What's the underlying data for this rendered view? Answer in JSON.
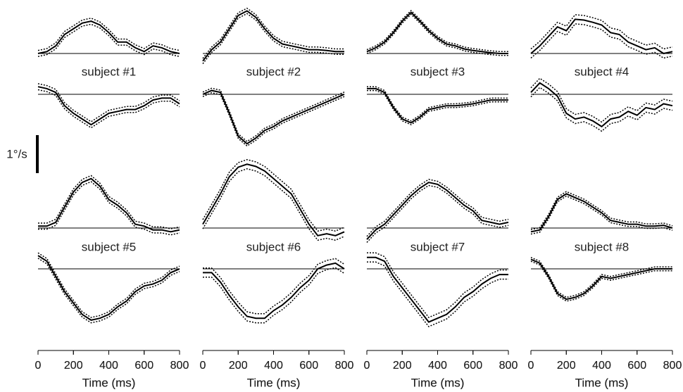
{
  "scale_bar": {
    "label": "1°/s",
    "value": 1
  },
  "chart_data": [
    {
      "type": "line",
      "title": "subject #1",
      "x": [
        0,
        50,
        100,
        150,
        200,
        250,
        300,
        350,
        400,
        450,
        500,
        550,
        600,
        650,
        700,
        750,
        800
      ],
      "xlim": [
        0,
        800
      ],
      "xticks": [
        0,
        200,
        400,
        600,
        800
      ],
      "xlabel": "Time (ms)",
      "color": "#000000",
      "series": [
        {
          "values": [
            0,
            0.05,
            0.2,
            0.5,
            0.65,
            0.8,
            0.85,
            0.75,
            0.55,
            0.3,
            0.3,
            0.15,
            0.05,
            0.2,
            0.15,
            0.05,
            0
          ],
          "ci": 0.08
        },
        {
          "values": [
            0.2,
            0.15,
            0.05,
            -0.3,
            -0.5,
            -0.65,
            -0.8,
            -0.65,
            -0.5,
            -0.45,
            -0.4,
            -0.4,
            -0.3,
            -0.15,
            -0.1,
            -0.1,
            -0.25
          ],
          "ci": 0.08
        }
      ]
    },
    {
      "type": "line",
      "title": "subject #2",
      "x": [
        0,
        50,
        100,
        150,
        200,
        250,
        300,
        350,
        400,
        450,
        500,
        550,
        600,
        650,
        700,
        750,
        800
      ],
      "xlim": [
        0,
        800
      ],
      "xticks": [
        0,
        200,
        400,
        600,
        800
      ],
      "xlabel": "Time (ms)",
      "color": "#000000",
      "series": [
        {
          "values": [
            -0.2,
            0.1,
            0.3,
            0.65,
            1.0,
            1.12,
            0.95,
            0.65,
            0.4,
            0.25,
            0.2,
            0.15,
            0.1,
            0.1,
            0.08,
            0.05,
            0.05
          ],
          "ci": 0.07
        },
        {
          "values": [
            0,
            0.1,
            0.05,
            -0.5,
            -1.1,
            -1.3,
            -1.15,
            -0.95,
            -0.85,
            -0.7,
            -0.6,
            -0.5,
            -0.4,
            -0.3,
            -0.2,
            -0.1,
            0
          ],
          "ci": 0.06
        }
      ]
    },
    {
      "type": "line",
      "title": "subject #3",
      "x": [
        0,
        50,
        100,
        150,
        200,
        250,
        300,
        350,
        400,
        450,
        500,
        550,
        600,
        650,
        700,
        750,
        800
      ],
      "xlim": [
        0,
        800
      ],
      "xticks": [
        0,
        200,
        400,
        600,
        800
      ],
      "xlabel": "Time (ms)",
      "color": "#000000",
      "series": [
        {
          "values": [
            0.05,
            0.15,
            0.3,
            0.55,
            0.85,
            1.08,
            0.85,
            0.6,
            0.4,
            0.25,
            0.2,
            0.12,
            0.08,
            0.05,
            0.02,
            0,
            0
          ],
          "ci": 0.05
        },
        {
          "values": [
            0.15,
            0.15,
            0.05,
            -0.35,
            -0.65,
            -0.75,
            -0.6,
            -0.4,
            -0.35,
            -0.3,
            -0.3,
            -0.28,
            -0.25,
            -0.2,
            -0.15,
            -0.15,
            -0.15
          ],
          "ci": 0.05
        }
      ]
    },
    {
      "type": "line",
      "title": "subject #4",
      "x": [
        0,
        50,
        100,
        150,
        200,
        250,
        300,
        350,
        400,
        450,
        500,
        550,
        600,
        650,
        700,
        750,
        800
      ],
      "xlim": [
        0,
        800
      ],
      "xticks": [
        0,
        200,
        400,
        600,
        800
      ],
      "xlabel": "Time (ms)",
      "color": "#000000",
      "series": [
        {
          "values": [
            0,
            0.2,
            0.45,
            0.7,
            0.6,
            0.9,
            0.88,
            0.82,
            0.75,
            0.55,
            0.5,
            0.3,
            0.2,
            0.1,
            0.15,
            0,
            0.05
          ],
          "ci": 0.12
        },
        {
          "values": [
            0.05,
            0.3,
            0.15,
            -0.05,
            -0.5,
            -0.65,
            -0.6,
            -0.7,
            -0.85,
            -0.65,
            -0.6,
            -0.45,
            -0.55,
            -0.35,
            -0.4,
            -0.25,
            -0.3
          ],
          "ci": 0.12
        }
      ]
    },
    {
      "type": "line",
      "title": "subject #5",
      "x": [
        0,
        50,
        100,
        150,
        200,
        250,
        300,
        350,
        400,
        450,
        500,
        550,
        600,
        650,
        700,
        750,
        800
      ],
      "xlim": [
        0,
        800
      ],
      "xticks": [
        0,
        200,
        400,
        600,
        800
      ],
      "xlabel": "Time (ms)",
      "color": "#000000",
      "series": [
        {
          "values": [
            0.05,
            0.05,
            0.15,
            0.55,
            0.95,
            1.2,
            1.3,
            1.1,
            0.75,
            0.6,
            0.4,
            0.1,
            0.05,
            -0.05,
            -0.05,
            -0.1,
            -0.05
          ],
          "ci": 0.08
        },
        {
          "values": [
            0.35,
            0.2,
            -0.2,
            -0.6,
            -0.9,
            -1.2,
            -1.35,
            -1.3,
            -1.2,
            -1.0,
            -0.85,
            -0.6,
            -0.45,
            -0.4,
            -0.3,
            -0.1,
            0
          ],
          "ci": 0.07
        }
      ]
    },
    {
      "type": "line",
      "title": "subject #6",
      "x": [
        0,
        50,
        100,
        150,
        200,
        250,
        300,
        350,
        400,
        450,
        500,
        550,
        600,
        650,
        700,
        750,
        800
      ],
      "xlim": [
        0,
        800
      ],
      "xticks": [
        0,
        200,
        400,
        600,
        800
      ],
      "xlabel": "Time (ms)",
      "color": "#000000",
      "series": [
        {
          "values": [
            0.1,
            0.5,
            0.9,
            1.35,
            1.6,
            1.68,
            1.62,
            1.5,
            1.3,
            1.1,
            0.9,
            0.5,
            0.1,
            -0.2,
            -0.15,
            -0.2,
            -0.1
          ],
          "ci": 0.12
        },
        {
          "values": [
            -0.1,
            -0.1,
            -0.35,
            -0.7,
            -1.0,
            -1.25,
            -1.3,
            -1.3,
            -1.1,
            -0.95,
            -0.75,
            -0.5,
            -0.3,
            0,
            0.1,
            0.15,
            0
          ],
          "ci": 0.12
        }
      ]
    },
    {
      "type": "line",
      "title": "subject #7",
      "x": [
        0,
        50,
        100,
        150,
        200,
        250,
        300,
        350,
        400,
        450,
        500,
        550,
        600,
        650,
        700,
        750,
        800
      ],
      "xlim": [
        0,
        800
      ],
      "xticks": [
        0,
        200,
        400,
        600,
        800
      ],
      "xlabel": "Time (ms)",
      "color": "#000000",
      "series": [
        {
          "values": [
            -0.3,
            -0.05,
            0.1,
            0.35,
            0.6,
            0.85,
            1.05,
            1.2,
            1.15,
            1.0,
            0.8,
            0.6,
            0.45,
            0.2,
            0.15,
            0.1,
            0.15
          ],
          "ci": 0.08
        },
        {
          "values": [
            0.3,
            0.3,
            0.2,
            -0.2,
            -0.5,
            -0.8,
            -1.1,
            -1.4,
            -1.3,
            -1.2,
            -1.0,
            -0.75,
            -0.6,
            -0.4,
            -0.25,
            -0.15,
            -0.15
          ],
          "ci": 0.12
        }
      ]
    },
    {
      "type": "line",
      "title": "subject #8",
      "x": [
        0,
        50,
        100,
        150,
        200,
        250,
        300,
        350,
        400,
        450,
        500,
        550,
        600,
        650,
        700,
        750,
        800
      ],
      "xlim": [
        0,
        800
      ],
      "xticks": [
        0,
        200,
        400,
        600,
        800
      ],
      "xlabel": "Time (ms)",
      "color": "#000000",
      "series": [
        {
          "values": [
            -0.1,
            -0.05,
            0.3,
            0.75,
            0.9,
            0.8,
            0.7,
            0.55,
            0.4,
            0.2,
            0.15,
            0.1,
            0.1,
            0.05,
            0.05,
            0.07,
            0
          ],
          "ci": 0.06
        },
        {
          "values": [
            0.25,
            0.15,
            -0.2,
            -0.65,
            -0.8,
            -0.75,
            -0.65,
            -0.45,
            -0.2,
            -0.25,
            -0.2,
            -0.15,
            -0.1,
            -0.05,
            0,
            0,
            0
          ],
          "ci": 0.05
        }
      ]
    }
  ]
}
